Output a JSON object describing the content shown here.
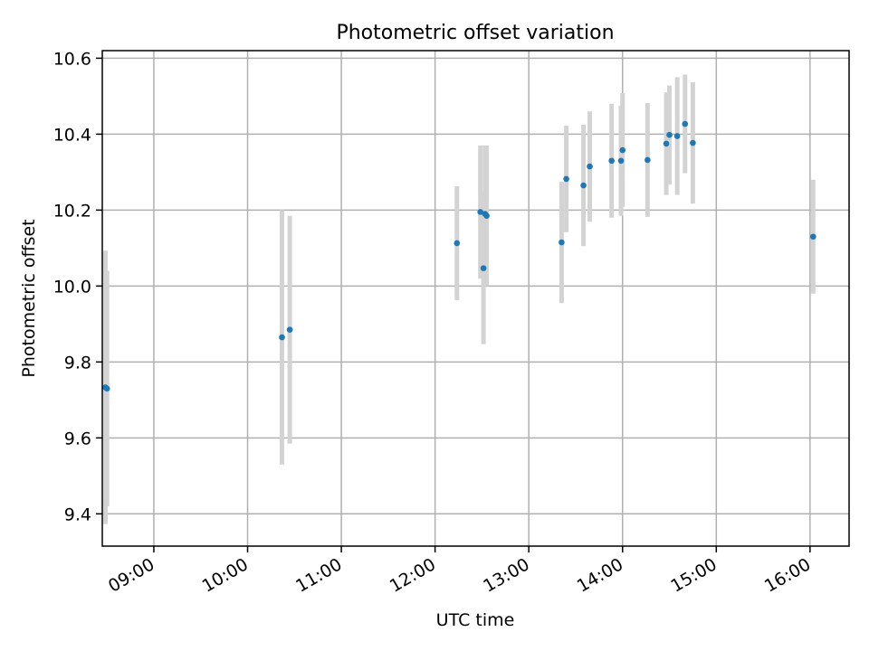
{
  "chart_data": {
    "type": "scatter",
    "title": "Photometric offset variation",
    "xlabel": "UTC time",
    "ylabel": "Photometric offset",
    "grid": true,
    "xlim": [
      "08:27",
      "16:25"
    ],
    "ylim": [
      9.315,
      10.62
    ],
    "x_ticks": [
      "09:00",
      "10:00",
      "11:00",
      "12:00",
      "13:00",
      "14:00",
      "15:00",
      "16:00"
    ],
    "y_ticks": [
      9.4,
      9.6,
      9.8,
      10.0,
      10.2,
      10.4,
      10.6
    ],
    "colors": {
      "points": "#1f77b4",
      "errorbars": "#d3d3d3",
      "grid": "#b0b0b0"
    },
    "series": [
      {
        "points": [
          {
            "x": "08:29",
            "y": 9.733,
            "yerr": 0.36
          },
          {
            "x": "08:30",
            "y": 9.73,
            "yerr": 0.31
          },
          {
            "x": "10:22",
            "y": 9.865,
            "yerr": 0.335
          },
          {
            "x": "10:27",
            "y": 9.885,
            "yerr": 0.3
          },
          {
            "x": "12:14",
            "y": 10.113,
            "yerr": 0.15
          },
          {
            "x": "12:29",
            "y": 10.195,
            "yerr": 0.175
          },
          {
            "x": "12:31",
            "y": 10.047,
            "yerr": 0.2
          },
          {
            "x": "12:32",
            "y": 10.19,
            "yerr": 0.18
          },
          {
            "x": "12:33",
            "y": 10.185,
            "yerr": 0.185
          },
          {
            "x": "13:21",
            "y": 10.115,
            "yerr": 0.16
          },
          {
            "x": "13:24",
            "y": 10.282,
            "yerr": 0.14
          },
          {
            "x": "13:35",
            "y": 10.265,
            "yerr": 0.16
          },
          {
            "x": "13:39",
            "y": 10.315,
            "yerr": 0.145
          },
          {
            "x": "13:53",
            "y": 10.33,
            "yerr": 0.15
          },
          {
            "x": "13:59",
            "y": 10.33,
            "yerr": 0.145
          },
          {
            "x": "14:00",
            "y": 10.358,
            "yerr": 0.15
          },
          {
            "x": "14:16",
            "y": 10.332,
            "yerr": 0.15
          },
          {
            "x": "14:28",
            "y": 10.375,
            "yerr": 0.135
          },
          {
            "x": "14:30",
            "y": 10.398,
            "yerr": 0.13
          },
          {
            "x": "14:35",
            "y": 10.395,
            "yerr": 0.155
          },
          {
            "x": "14:40",
            "y": 10.427,
            "yerr": 0.13
          },
          {
            "x": "14:45",
            "y": 10.377,
            "yerr": 0.16
          },
          {
            "x": "16:02",
            "y": 10.13,
            "yerr": 0.15
          }
        ]
      }
    ]
  }
}
